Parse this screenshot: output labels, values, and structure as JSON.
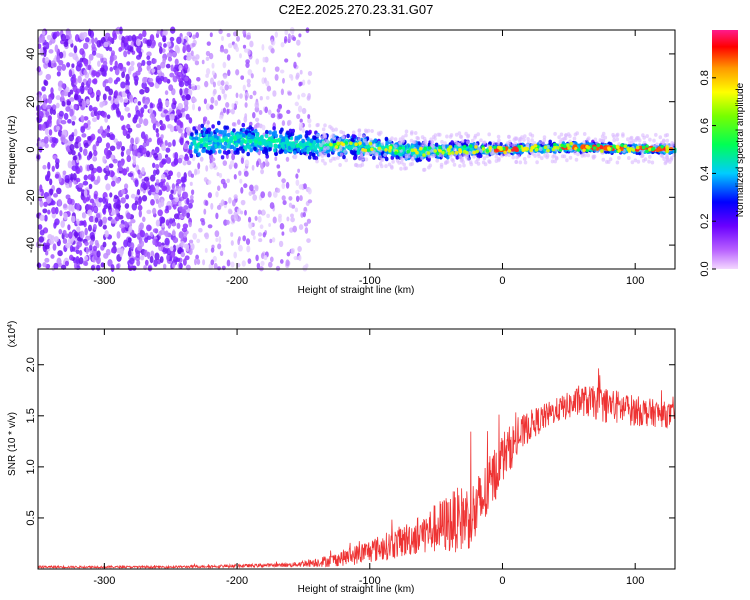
{
  "title": "C2E2.2025.270.23.31.G07",
  "colors": {
    "snr_line": "#ee3333",
    "axis": "#000000",
    "spectrogram_low": "#7a22ff"
  },
  "chart_data": [
    {
      "type": "heatmap",
      "title": "C2E2.2025.270.23.31.G07",
      "xlabel": "Height of straight line (km)",
      "ylabel": "Frequency (Hz)",
      "xlim": [
        -350,
        130
      ],
      "ylim": [
        -50,
        50
      ],
      "x_ticks": [
        -300,
        -200,
        -100,
        0,
        100
      ],
      "x_tick_labels": [
        "-300",
        "-200",
        "-100",
        "0",
        "100"
      ],
      "y_ticks": [
        -40,
        -20,
        0,
        20,
        40
      ],
      "y_tick_labels": [
        "-40",
        "-20",
        "0",
        "20",
        "40"
      ],
      "colorbar": {
        "label": "Normalized spectral amplitude",
        "range": [
          0.0,
          1.0
        ],
        "ticks": [
          0.0,
          0.2,
          0.4,
          0.6,
          0.8
        ],
        "tick_labels": [
          "0.0",
          "0.2",
          "0.4",
          "0.6",
          "0.8"
        ]
      },
      "band": {
        "description_points": [
          {
            "x": -230,
            "center": 3,
            "halfwidth": 6
          },
          {
            "x": -200,
            "center": 4,
            "halfwidth": 6
          },
          {
            "x": -150,
            "center": 2,
            "halfwidth": 5
          },
          {
            "x": -100,
            "center": 1,
            "halfwidth": 4
          },
          {
            "x": -60,
            "center": -1,
            "halfwidth": 4
          },
          {
            "x": -30,
            "center": 0,
            "halfwidth": 3
          },
          {
            "x": 0,
            "center": 0,
            "halfwidth": 2
          },
          {
            "x": 50,
            "center": 1,
            "halfwidth": 2
          },
          {
            "x": 130,
            "center": 0,
            "halfwidth": 2
          }
        ]
      }
    },
    {
      "type": "line",
      "xlabel": "Height of straight line (km)",
      "ylabel": "SNR (10 * v/v)",
      "y_multiplier_label": "(x10",
      "y_multiplier_exp": "4",
      "y_multiplier_close": ")",
      "xlim": [
        -350,
        130
      ],
      "ylim": [
        0,
        2.35
      ],
      "x_ticks": [
        -300,
        -200,
        -100,
        0,
        100
      ],
      "x_tick_labels": [
        "-300",
        "-200",
        "-100",
        "0",
        "100"
      ],
      "y_ticks": [
        0.5,
        1.0,
        1.5,
        2.0
      ],
      "y_tick_labels": [
        "0.5",
        "1.0",
        "1.5",
        "2.0"
      ],
      "series": [
        {
          "name": "SNR",
          "envelope": [
            {
              "x": -350,
              "mean": 0.02,
              "noise": 0.01
            },
            {
              "x": -250,
              "mean": 0.02,
              "noise": 0.01
            },
            {
              "x": -200,
              "mean": 0.03,
              "noise": 0.015
            },
            {
              "x": -160,
              "mean": 0.04,
              "noise": 0.02
            },
            {
              "x": -130,
              "mean": 0.08,
              "noise": 0.06
            },
            {
              "x": -110,
              "mean": 0.14,
              "noise": 0.1
            },
            {
              "x": -80,
              "mean": 0.25,
              "noise": 0.15
            },
            {
              "x": -60,
              "mean": 0.35,
              "noise": 0.2
            },
            {
              "x": -40,
              "mean": 0.45,
              "noise": 0.3
            },
            {
              "x": -20,
              "mean": 0.55,
              "noise": 0.35
            },
            {
              "x": -10,
              "mean": 0.8,
              "noise": 0.3
            },
            {
              "x": 0,
              "mean": 1.1,
              "noise": 0.25
            },
            {
              "x": 20,
              "mean": 1.4,
              "noise": 0.15
            },
            {
              "x": 40,
              "mean": 1.55,
              "noise": 0.12
            },
            {
              "x": 60,
              "mean": 1.65,
              "noise": 0.15
            },
            {
              "x": 80,
              "mean": 1.6,
              "noise": 0.18
            },
            {
              "x": 100,
              "mean": 1.55,
              "noise": 0.15
            },
            {
              "x": 130,
              "mean": 1.5,
              "noise": 0.12
            }
          ]
        }
      ]
    }
  ]
}
